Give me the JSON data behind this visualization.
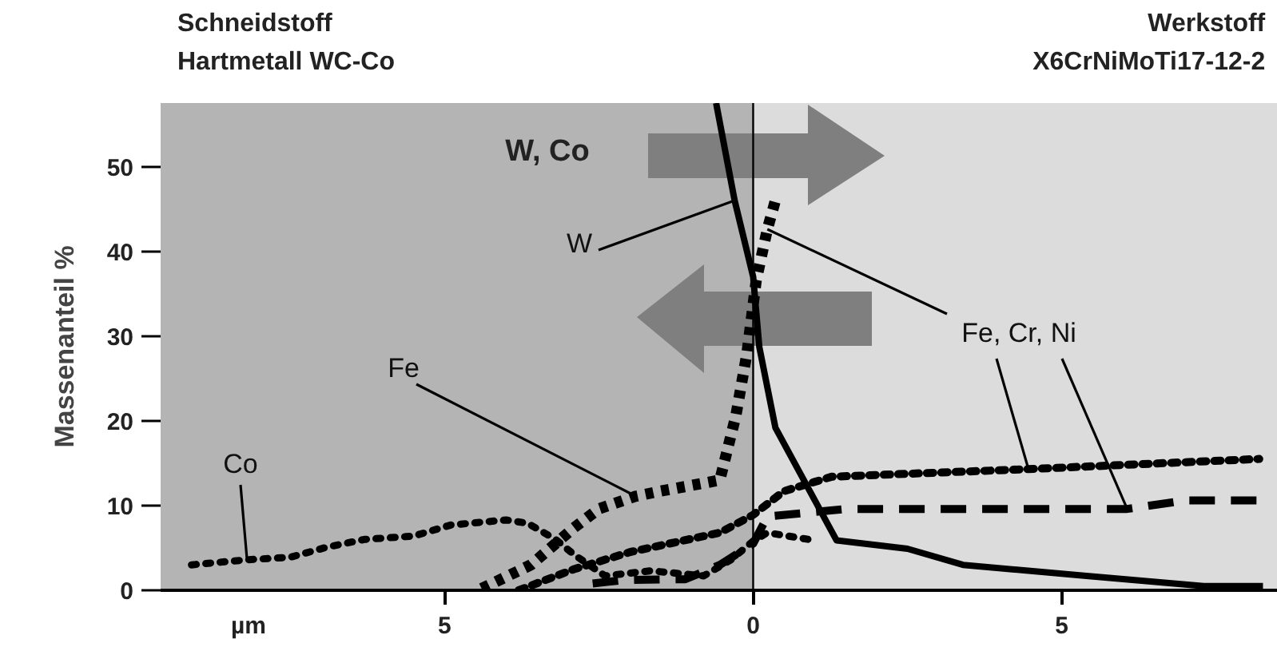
{
  "chart_data": {
    "type": "line",
    "xlabel": "µm",
    "ylabel": "Massenanteil %",
    "xlim": [
      -9.6,
      8.5
    ],
    "ylim": [
      0,
      57.5
    ],
    "xticks": [
      {
        "value": -5,
        "label": "5"
      },
      0,
      5
    ],
    "yticks": [
      0,
      10,
      20,
      30,
      40,
      50
    ],
    "bands": [
      {
        "axis": "x",
        "from": -9.6,
        "to": 0,
        "color": "#b4b4b4"
      },
      {
        "axis": "x",
        "from": 0,
        "to": 8.5,
        "color": "#dcdcdc"
      }
    ],
    "ref_lines": [
      {
        "axis": "x",
        "value": 0,
        "color": "#000000"
      }
    ],
    "series": [
      {
        "color": "#000000",
        "line_style": "solid",
        "x": [
          -0.6,
          -0.3,
          0,
          0.1,
          0.36,
          1.35,
          2.5,
          3.4,
          5.4,
          7.3,
          8.26
        ],
        "values": [
          57.5,
          46,
          37,
          28.7,
          19.2,
          5.9,
          4.9,
          3,
          1.7,
          0.5,
          0.5
        ]
      },
      {
        "color": "#000000",
        "line_style": "dotted",
        "x": [
          -4.4,
          -3.6,
          -2.9,
          -2.5,
          -1.9,
          -1.5,
          -0.54,
          -0.28,
          -0.1,
          0.05,
          0.23,
          0.36
        ],
        "values": [
          0.2,
          3,
          7.4,
          9.6,
          11.1,
          11.7,
          13,
          20.6,
          28,
          36.6,
          42.6,
          46
        ]
      },
      {
        "color": "#000000",
        "line_style": "dotted",
        "x": [
          -3.8,
          -2.9,
          -2.0,
          -0.54,
          0,
          0.5,
          1.27,
          4.46,
          8.2
        ],
        "values": [
          0,
          2.5,
          4.5,
          6.8,
          8.9,
          11.7,
          13.4,
          14.3,
          15.5
        ]
      },
      {
        "color": "#000000",
        "line_style": "dashed",
        "x": [
          -2.6,
          -2.1,
          -1.3,
          -1.1,
          -0.54,
          0,
          0.23,
          1.5,
          6.06,
          7.0,
          8.26
        ],
        "values": [
          0.8,
          1.2,
          1.3,
          1.3,
          3,
          5.5,
          8.7,
          9.6,
          9.6,
          10.6,
          10.6
        ]
      },
      {
        "color": "#000000",
        "line_style": "dotted",
        "x": [
          -9.1,
          -8.2,
          -7.5,
          -6.9,
          -6.3,
          -5.5,
          -4.9,
          -4.0,
          -3.65,
          -3.2,
          -2.9,
          -2.4,
          -1.66,
          -0.8,
          -0.36,
          0,
          0.23,
          0.9
        ],
        "values": [
          3,
          3.6,
          3.9,
          5.1,
          6,
          6.4,
          7.7,
          8.3,
          7.9,
          6,
          4.2,
          1.7,
          2.3,
          1.7,
          3.6,
          5.8,
          6.8,
          6
        ]
      }
    ],
    "annotations": [
      "Schneidstoff",
      "Hartmetall WC-Co",
      "Werkstoff",
      "X6CrNiMoTi17-12-2",
      "W, Co",
      {
        "text": "Co",
        "x": -8.2,
        "y": 3.6
      },
      {
        "text": "W",
        "x": -0.3,
        "y": 46
      },
      {
        "text": "Fe",
        "x": -1.9,
        "y": 11.1
      },
      {
        "text": "Fe, Cr, Ni",
        "x": 0.23,
        "y": 42.6
      }
    ]
  }
}
